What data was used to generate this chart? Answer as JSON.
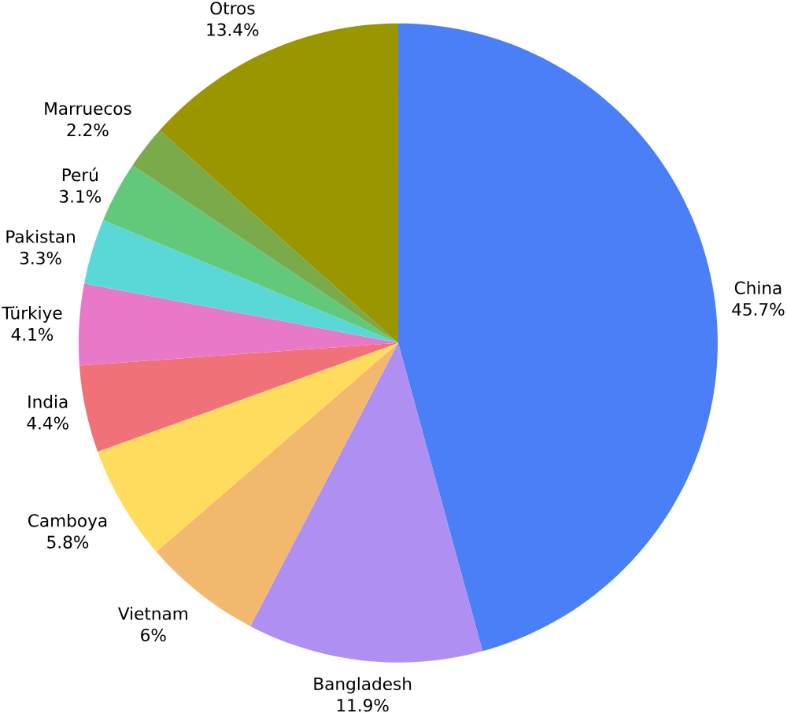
{
  "chart_data": {
    "type": "pie",
    "categories": [
      "China",
      "Bangladesh",
      "Vietnam",
      "Camboya",
      "India",
      "Türkiye",
      "Pakistan",
      "Perú",
      "Marruecos",
      "Otros"
    ],
    "values": [
      45.7,
      11.9,
      6,
      5.8,
      4.4,
      4.1,
      3.3,
      3.1,
      2.2,
      13.4
    ],
    "value_labels": [
      "45.7%",
      "11.9%",
      "6%",
      "5.8%",
      "4.4%",
      "4.1%",
      "3.3%",
      "3.1%",
      "2.2%",
      "13.4%"
    ],
    "colors": [
      "#4a7ff7",
      "#b08ff2",
      "#f2b96e",
      "#ffdc5e",
      "#f07178",
      "#e879c8",
      "#5ad8d8",
      "#62c97a",
      "#7aaa4a",
      "#999600"
    ]
  }
}
